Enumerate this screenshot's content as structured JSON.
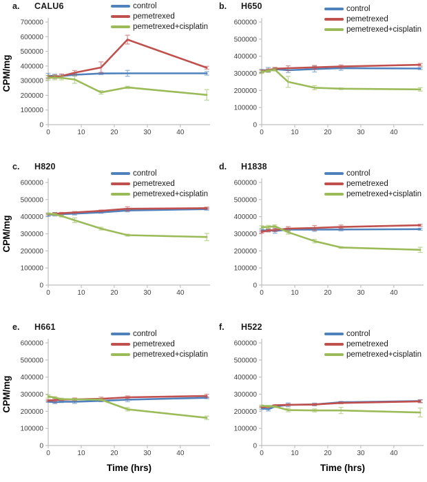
{
  "figure": {
    "ylabel": "CPM/mg",
    "xlabel": "Time (hrs)"
  },
  "colors": {
    "control": "#4F81BD",
    "pemetrexed": "#C0504D",
    "pemetrexed_cisplatin": "#9BBB59",
    "axis": "#BFBFBF",
    "tick_text": "#3F3F3F"
  },
  "legend_labels": [
    "control",
    "pemetrexed",
    "pemetrexed+cisplatin"
  ],
  "chart_data": [
    {
      "type": "line",
      "panel_label": "a.",
      "title": "CALU6",
      "xlabel": "",
      "ylabel": "CPM/mg",
      "x": [
        0,
        2,
        4,
        8,
        16,
        24,
        48
      ],
      "xticks": [
        0,
        10,
        20,
        30,
        40
      ],
      "xlim": [
        0,
        49
      ],
      "ylim": [
        0,
        700000
      ],
      "ytick_step": 100000,
      "grid": false,
      "legend_position": "top-right",
      "series": [
        {
          "name": "control",
          "color": "#4F81BD",
          "values": [
            335000,
            330000,
            331000,
            340000,
            349000,
            350000,
            350000
          ],
          "errors": [
            15000,
            14000,
            13000,
            9000,
            8000,
            20000,
            12000
          ]
        },
        {
          "name": "pemetrexed",
          "color": "#C0504D",
          "values": [
            324000,
            327000,
            331000,
            354000,
            390000,
            580000,
            388000
          ],
          "errors": [
            10000,
            12000,
            14000,
            15000,
            38000,
            30000,
            10000
          ]
        },
        {
          "name": "pemetrexed+cisplatin",
          "color": "#9BBB59",
          "values": [
            320000,
            321000,
            319000,
            308000,
            220000,
            254000,
            203000
          ],
          "errors": [
            16000,
            15000,
            14000,
            26000,
            12000,
            8000,
            36000
          ]
        }
      ]
    },
    {
      "type": "line",
      "panel_label": "b.",
      "title": "H650",
      "xlabel": "",
      "ylabel": "",
      "x": [
        0,
        2,
        4,
        8,
        16,
        24,
        48
      ],
      "xticks": [
        0,
        10,
        20,
        30,
        40
      ],
      "xlim": [
        0,
        49
      ],
      "ylim": [
        0,
        600000
      ],
      "ytick_step": 100000,
      "grid": false,
      "legend_position": "top-right",
      "series": [
        {
          "name": "control",
          "color": "#4F81BD",
          "values": [
            315000,
            320000,
            324000,
            318000,
            325000,
            330000,
            328000
          ],
          "errors": [
            8000,
            14000,
            8000,
            14000,
            17000,
            12000,
            6000
          ]
        },
        {
          "name": "pemetrexed",
          "color": "#C0504D",
          "values": [
            312000,
            318000,
            327000,
            330000,
            335000,
            340000,
            350000
          ],
          "errors": [
            8000,
            8000,
            8000,
            14000,
            11000,
            9000,
            8000
          ]
        },
        {
          "name": "pemetrexed+cisplatin",
          "color": "#9BBB59",
          "values": [
            308000,
            315000,
            321000,
            250000,
            216000,
            210000,
            206000
          ],
          "errors": [
            9000,
            8000,
            7000,
            32000,
            12000,
            5000,
            10000
          ]
        }
      ]
    },
    {
      "type": "line",
      "panel_label": "c.",
      "title": "H820",
      "xlabel": "",
      "ylabel": "CPM/mg",
      "x": [
        0,
        2,
        4,
        8,
        16,
        24,
        48
      ],
      "xticks": [
        0,
        10,
        20,
        30,
        40
      ],
      "xlim": [
        0,
        49
      ],
      "ylim": [
        0,
        600000
      ],
      "ytick_step": 100000,
      "grid": false,
      "legend_position": "top-right",
      "series": [
        {
          "name": "control",
          "color": "#4F81BD",
          "values": [
            410000,
            414000,
            415000,
            418000,
            425000,
            436000,
            444000
          ],
          "errors": [
            9000,
            10000,
            8000,
            8000,
            5000,
            8000,
            6000
          ]
        },
        {
          "name": "pemetrexed",
          "color": "#C0504D",
          "values": [
            415000,
            416000,
            420000,
            425000,
            434000,
            446000,
            450000
          ],
          "errors": [
            5000,
            8000,
            5000,
            5000,
            5000,
            12000,
            6000
          ]
        },
        {
          "name": "pemetrexed+cisplatin",
          "color": "#9BBB59",
          "values": [
            417000,
            414000,
            404000,
            379000,
            330000,
            292000,
            281000
          ],
          "errors": [
            5000,
            6000,
            6000,
            14000,
            8000,
            6000,
            21000
          ]
        }
      ]
    },
    {
      "type": "line",
      "panel_label": "d.",
      "title": "H1838",
      "xlabel": "",
      "ylabel": "",
      "x": [
        0,
        2,
        4,
        8,
        16,
        24,
        48
      ],
      "xticks": [
        0,
        10,
        20,
        30,
        40
      ],
      "xlim": [
        0,
        49
      ],
      "ylim": [
        0,
        600000
      ],
      "ytick_step": 100000,
      "grid": false,
      "legend_position": "top-right",
      "series": [
        {
          "name": "control",
          "color": "#4F81BD",
          "values": [
            319000,
            320000,
            317000,
            324000,
            324000,
            325000,
            327000
          ],
          "errors": [
            8000,
            8000,
            14000,
            10000,
            10000,
            8000,
            6000
          ]
        },
        {
          "name": "pemetrexed",
          "color": "#C0504D",
          "values": [
            311000,
            319000,
            322000,
            330000,
            334000,
            340000,
            350000
          ],
          "errors": [
            8000,
            8000,
            10000,
            12000,
            14000,
            11000,
            6000
          ]
        },
        {
          "name": "pemetrexed+cisplatin",
          "color": "#9BBB59",
          "values": [
            339000,
            340000,
            344000,
            309000,
            257000,
            220000,
            206000
          ],
          "errors": [
            8000,
            9000,
            8000,
            11000,
            10000,
            5000,
            15000
          ]
        }
      ]
    },
    {
      "type": "line",
      "panel_label": "e.",
      "title": "H661",
      "xlabel": "Time (hrs)",
      "ylabel": "CPM/mg",
      "x": [
        0,
        2,
        4,
        8,
        16,
        24,
        48
      ],
      "xticks": [
        0,
        10,
        20,
        30,
        40
      ],
      "xlim": [
        0,
        49
      ],
      "ylim": [
        0,
        600000
      ],
      "ytick_step": 100000,
      "grid": false,
      "legend_position": "top-right",
      "series": [
        {
          "name": "control",
          "color": "#4F81BD",
          "values": [
            257000,
            253000,
            256000,
            256000,
            261000,
            268000,
            279000
          ],
          "errors": [
            5000,
            8000,
            5000,
            10000,
            5000,
            12000,
            5000
          ]
        },
        {
          "name": "pemetrexed",
          "color": "#C0504D",
          "values": [
            263000,
            266000,
            268000,
            270000,
            273000,
            282000,
            290000
          ],
          "errors": [
            5000,
            10000,
            5000,
            8000,
            10000,
            8000,
            10000
          ]
        },
        {
          "name": "pemetrexed+cisplatin",
          "color": "#9BBB59",
          "values": [
            287000,
            280000,
            272000,
            270000,
            268000,
            212000,
            162000
          ],
          "errors": [
            9000,
            6000,
            5000,
            5000,
            5000,
            10000,
            10000
          ]
        }
      ]
    },
    {
      "type": "line",
      "panel_label": "f.",
      "title": "H522",
      "xlabel": "Time (hrs)",
      "ylabel": "",
      "x": [
        0,
        2,
        4,
        8,
        16,
        24,
        48
      ],
      "xticks": [
        0,
        10,
        20,
        30,
        40
      ],
      "xlim": [
        0,
        49
      ],
      "ylim": [
        0,
        600000
      ],
      "ytick_step": 100000,
      "grid": false,
      "legend_position": "top-right",
      "series": [
        {
          "name": "control",
          "color": "#4F81BD",
          "values": [
            218000,
            212000,
            228000,
            238000,
            240000,
            253000,
            260000
          ],
          "errors": [
            8000,
            10000,
            5000,
            11000,
            8000,
            5000,
            8000
          ]
        },
        {
          "name": "pemetrexed",
          "color": "#C0504D",
          "values": [
            225000,
            226000,
            235000,
            238000,
            240000,
            249000,
            258000
          ],
          "errors": [
            5000,
            5000,
            4000,
            5000,
            5000,
            5000,
            8000
          ]
        },
        {
          "name": "pemetrexed+cisplatin",
          "color": "#9BBB59",
          "values": [
            232000,
            230000,
            228000,
            207000,
            205000,
            205000,
            193000
          ],
          "errors": [
            5000,
            5000,
            5000,
            10000,
            9000,
            18000,
            26000
          ]
        }
      ]
    }
  ]
}
